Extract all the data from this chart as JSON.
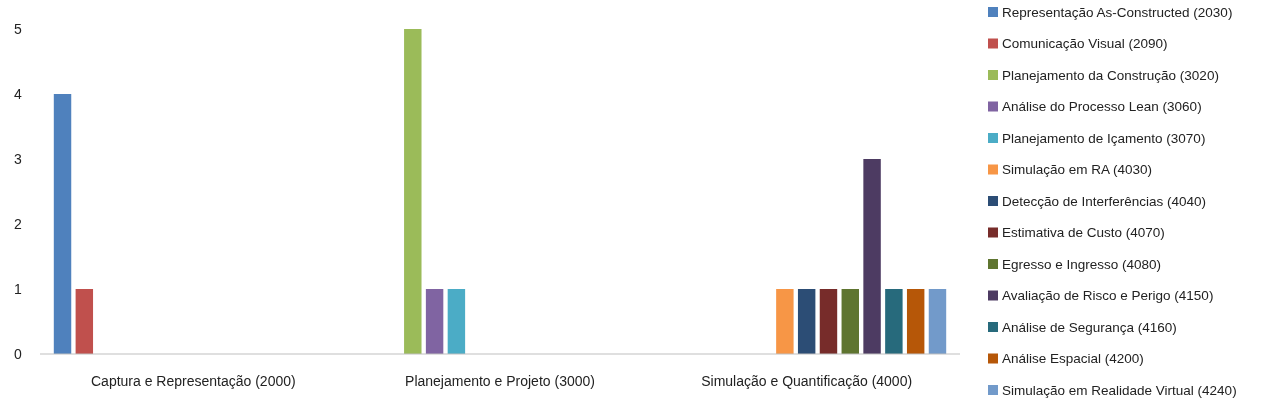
{
  "chart_data": {
    "type": "bar",
    "categories": [
      "Captura e Representação (2000)",
      "Planejamento e Projeto (3000)",
      "Simulação e Quantificação (4000)"
    ],
    "series": [
      {
        "name": "Representação As-Constructed (2030)",
        "color": "#4f81bd",
        "values": [
          4,
          null,
          null
        ]
      },
      {
        "name": "Comunicação Visual (2090)",
        "color": "#c0504d",
        "values": [
          1,
          null,
          null
        ]
      },
      {
        "name": "Planejamento da Construção (3020)",
        "color": "#9bbb59",
        "values": [
          null,
          5,
          null
        ]
      },
      {
        "name": "Análise do Processo Lean (3060)",
        "color": "#8064a2",
        "values": [
          null,
          1,
          null
        ]
      },
      {
        "name": "Planejamento de Içamento (3070)",
        "color": "#4bacc6",
        "values": [
          null,
          1,
          null
        ]
      },
      {
        "name": "Simulação em RA (4030)",
        "color": "#f79646",
        "values": [
          null,
          null,
          1
        ]
      },
      {
        "name": "Detecção de Interferências (4040)",
        "color": "#2c4d75",
        "values": [
          null,
          null,
          1
        ]
      },
      {
        "name": "Estimativa de Custo (4070)",
        "color": "#772c2a",
        "values": [
          null,
          null,
          1
        ]
      },
      {
        "name": "Egresso e Ingresso (4080)",
        "color": "#5f7530",
        "values": [
          null,
          null,
          1
        ]
      },
      {
        "name": "Avaliação de Risco e Perigo (4150)",
        "color": "#4d3b62",
        "values": [
          null,
          null,
          3
        ]
      },
      {
        "name": "Análise de Segurança (4160)",
        "color": "#276a7c",
        "values": [
          null,
          null,
          1
        ]
      },
      {
        "name": "Análise Espacial (4200)",
        "color": "#b65708",
        "values": [
          null,
          null,
          1
        ]
      },
      {
        "name": "Simulação em Realidade Virtual (4240)",
        "color": "#729aca",
        "values": [
          null,
          null,
          1
        ]
      }
    ],
    "ylim": [
      0,
      5
    ],
    "yticks": [
      0,
      1,
      2,
      3,
      4,
      5
    ],
    "grid": false,
    "legend": "right"
  }
}
